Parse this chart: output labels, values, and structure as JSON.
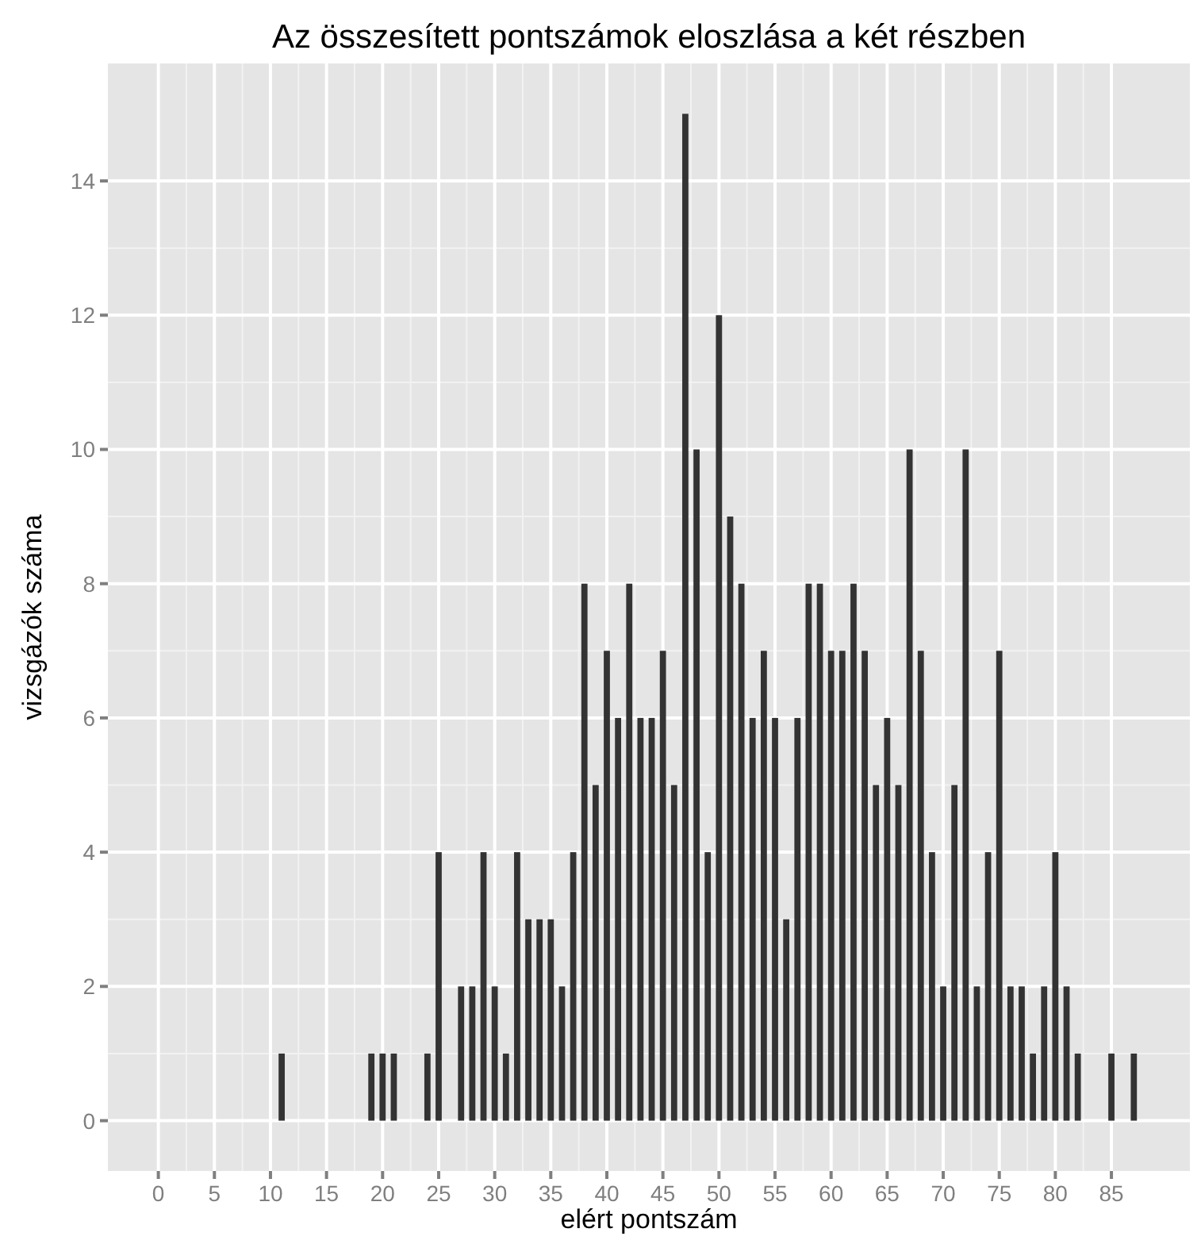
{
  "chart_data": {
    "type": "bar",
    "title": "Az összesített pontszámok eloszlása a két részben",
    "xlabel": "elért pontszám",
    "ylabel": "vizsgázók száma",
    "x": [
      0,
      1,
      2,
      3,
      4,
      5,
      6,
      7,
      8,
      9,
      10,
      11,
      12,
      13,
      14,
      15,
      16,
      17,
      18,
      19,
      20,
      21,
      22,
      23,
      24,
      25,
      26,
      27,
      28,
      29,
      30,
      31,
      32,
      33,
      34,
      35,
      36,
      37,
      38,
      39,
      40,
      41,
      42,
      43,
      44,
      45,
      46,
      47,
      48,
      49,
      50,
      51,
      52,
      53,
      54,
      55,
      56,
      57,
      58,
      59,
      60,
      61,
      62,
      63,
      64,
      65,
      66,
      67,
      68,
      69,
      70,
      71,
      72,
      73,
      74,
      75,
      76,
      77,
      78,
      79,
      80,
      81,
      82,
      83,
      84,
      85,
      86,
      87,
      88,
      89
    ],
    "values": [
      0,
      0,
      0,
      0,
      0,
      0,
      0,
      0,
      0,
      0,
      0,
      1,
      0,
      0,
      0,
      0,
      0,
      0,
      0,
      1,
      1,
      1,
      0,
      0,
      1,
      4,
      0,
      2,
      2,
      4,
      2,
      1,
      4,
      3,
      3,
      3,
      2,
      4,
      8,
      5,
      7,
      6,
      8,
      6,
      6,
      7,
      5,
      15,
      10,
      4,
      12,
      9,
      8,
      6,
      7,
      6,
      3,
      6,
      8,
      8,
      7,
      7,
      8,
      7,
      5,
      6,
      5,
      10,
      7,
      4,
      2,
      5,
      10,
      2,
      4,
      7,
      2,
      2,
      1,
      2,
      4,
      2,
      1,
      0,
      0,
      1,
      0,
      1,
      0,
      0
    ],
    "color": "#333333",
    "xlim": [
      -4.5,
      92
    ],
    "xticks": [
      0,
      5,
      10,
      15,
      20,
      25,
      30,
      35,
      40,
      45,
      50,
      55,
      60,
      65,
      70,
      75,
      80,
      85
    ],
    "ylim": [
      -0.75,
      15.75
    ],
    "yticks": [
      0,
      2,
      4,
      6,
      8,
      10,
      12,
      14
    ],
    "grid": true
  }
}
